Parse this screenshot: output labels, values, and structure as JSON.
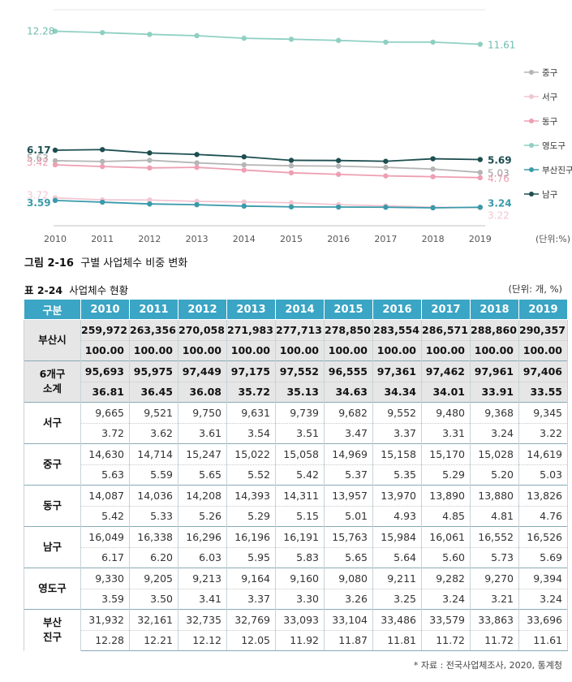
{
  "chart_data": {
    "type": "line",
    "x": [
      "2010",
      "2011",
      "2012",
      "2013",
      "2014",
      "2015",
      "2016",
      "2017",
      "2018",
      "2019"
    ],
    "unit_label": "(단위:%)",
    "ylim": [
      2.5,
      12.8
    ],
    "series": [
      {
        "name": "중구",
        "color": "#b5b5b5",
        "values": [
          5.63,
          5.59,
          5.65,
          5.52,
          5.42,
          5.37,
          5.35,
          5.29,
          5.2,
          5.03
        ]
      },
      {
        "name": "서구",
        "color": "#f2c6d1",
        "values": [
          3.72,
          3.62,
          3.61,
          3.54,
          3.51,
          3.47,
          3.37,
          3.31,
          3.24,
          3.22
        ]
      },
      {
        "name": "동구",
        "color": "#ee9fb2",
        "values": [
          5.42,
          5.33,
          5.26,
          5.29,
          5.15,
          5.01,
          4.93,
          4.85,
          4.81,
          4.76
        ]
      },
      {
        "name": "영도구",
        "color": "#8fd0c3",
        "values": [
          12.28,
          12.21,
          12.12,
          12.05,
          11.92,
          11.87,
          11.81,
          11.72,
          11.72,
          11.61
        ]
      },
      {
        "name": "부산진구",
        "color": "#3a9aaa",
        "values": [
          3.59,
          3.5,
          3.41,
          3.37,
          3.3,
          3.26,
          3.25,
          3.24,
          3.21,
          3.24
        ]
      },
      {
        "name": "남구",
        "color": "#1d4e50",
        "values": [
          6.17,
          6.2,
          6.03,
          5.95,
          5.83,
          5.65,
          5.64,
          5.6,
          5.73,
          5.69
        ]
      }
    ],
    "start_labels": [
      {
        "series": "영도구",
        "text": "12.28"
      },
      {
        "series": "남구",
        "text": "6.17"
      },
      {
        "series": "중구",
        "text": "5.63"
      },
      {
        "series": "동구",
        "text": "5.42"
      },
      {
        "series": "서구",
        "text": "3.72"
      },
      {
        "series": "부산진구",
        "text": "3.59"
      }
    ],
    "end_labels": [
      {
        "series": "영도구",
        "text": "11.61"
      },
      {
        "series": "남구",
        "text": "5.69"
      },
      {
        "series": "중구",
        "text": "5.03"
      },
      {
        "series": "동구",
        "text": "4.76"
      },
      {
        "series": "부산진구",
        "text": "3.24"
      },
      {
        "series": "서구",
        "text": "3.22"
      }
    ]
  },
  "figure": {
    "num": "그림 2-16",
    "title": "구별 사업체수 비중 변화"
  },
  "table": {
    "num": "표 2-24",
    "title": "사업체수 현황",
    "unit": "(단위: 개, %)",
    "header": [
      "구분",
      "2010",
      "2011",
      "2012",
      "2013",
      "2014",
      "2015",
      "2016",
      "2017",
      "2018",
      "2019"
    ],
    "groups": [
      {
        "name": "부산시",
        "highlight": true,
        "counts": [
          "259,972",
          "263,356",
          "270,058",
          "271,983",
          "277,713",
          "278,850",
          "283,554",
          "286,571",
          "288,860",
          "290,357"
        ],
        "shares": [
          "100.00",
          "100.00",
          "100.00",
          "100.00",
          "100.00",
          "100.00",
          "100.00",
          "100.00",
          "100.00",
          "100.00"
        ]
      },
      {
        "name": "6개구\n소계",
        "highlight": true,
        "counts": [
          "95,693",
          "95,975",
          "97,449",
          "97,175",
          "97,552",
          "96,555",
          "97,361",
          "97,462",
          "97,961",
          "97,406"
        ],
        "shares": [
          "36.81",
          "36.45",
          "36.08",
          "35.72",
          "35.13",
          "34.63",
          "34.34",
          "34.01",
          "33.91",
          "33.55"
        ]
      },
      {
        "name": "서구",
        "highlight": false,
        "counts": [
          "9,665",
          "9,521",
          "9,750",
          "9,631",
          "9,739",
          "9,682",
          "9,552",
          "9,480",
          "9,368",
          "9,345"
        ],
        "shares": [
          "3.72",
          "3.62",
          "3.61",
          "3.54",
          "3.51",
          "3.47",
          "3.37",
          "3.31",
          "3.24",
          "3.22"
        ]
      },
      {
        "name": "중구",
        "highlight": false,
        "counts": [
          "14,630",
          "14,714",
          "15,247",
          "15,022",
          "15,058",
          "14,969",
          "15,158",
          "15,170",
          "15,028",
          "14,619"
        ],
        "shares": [
          "5.63",
          "5.59",
          "5.65",
          "5.52",
          "5.42",
          "5.37",
          "5.35",
          "5.29",
          "5.20",
          "5.03"
        ]
      },
      {
        "name": "동구",
        "highlight": false,
        "counts": [
          "14,087",
          "14,036",
          "14,208",
          "14,393",
          "14,311",
          "13,957",
          "13,970",
          "13,890",
          "13,880",
          "13,826"
        ],
        "shares": [
          "5.42",
          "5.33",
          "5.26",
          "5.29",
          "5.15",
          "5.01",
          "4.93",
          "4.85",
          "4.81",
          "4.76"
        ]
      },
      {
        "name": "남구",
        "highlight": false,
        "counts": [
          "16,049",
          "16,338",
          "16,296",
          "16,196",
          "16,191",
          "15,763",
          "15,984",
          "16,061",
          "16,552",
          "16,526"
        ],
        "shares": [
          "6.17",
          "6.20",
          "6.03",
          "5.95",
          "5.83",
          "5.65",
          "5.64",
          "5.60",
          "5.73",
          "5.69"
        ]
      },
      {
        "name": "영도구",
        "highlight": false,
        "counts": [
          "9,330",
          "9,205",
          "9,213",
          "9,164",
          "9,160",
          "9,080",
          "9,211",
          "9,282",
          "9,270",
          "9,394"
        ],
        "shares": [
          "3.59",
          "3.50",
          "3.41",
          "3.37",
          "3.30",
          "3.26",
          "3.25",
          "3.24",
          "3.21",
          "3.24"
        ]
      },
      {
        "name": "부산\n진구",
        "highlight": false,
        "counts": [
          "31,932",
          "32,161",
          "32,735",
          "32,769",
          "33,093",
          "33,104",
          "33,486",
          "33,579",
          "33,863",
          "33,696"
        ],
        "shares": [
          "12.28",
          "12.21",
          "12.12",
          "12.05",
          "11.92",
          "11.87",
          "11.81",
          "11.72",
          "11.72",
          "11.61"
        ]
      }
    ],
    "source": "* 자료 : 전국사업체조사, 2020, 통계청"
  }
}
